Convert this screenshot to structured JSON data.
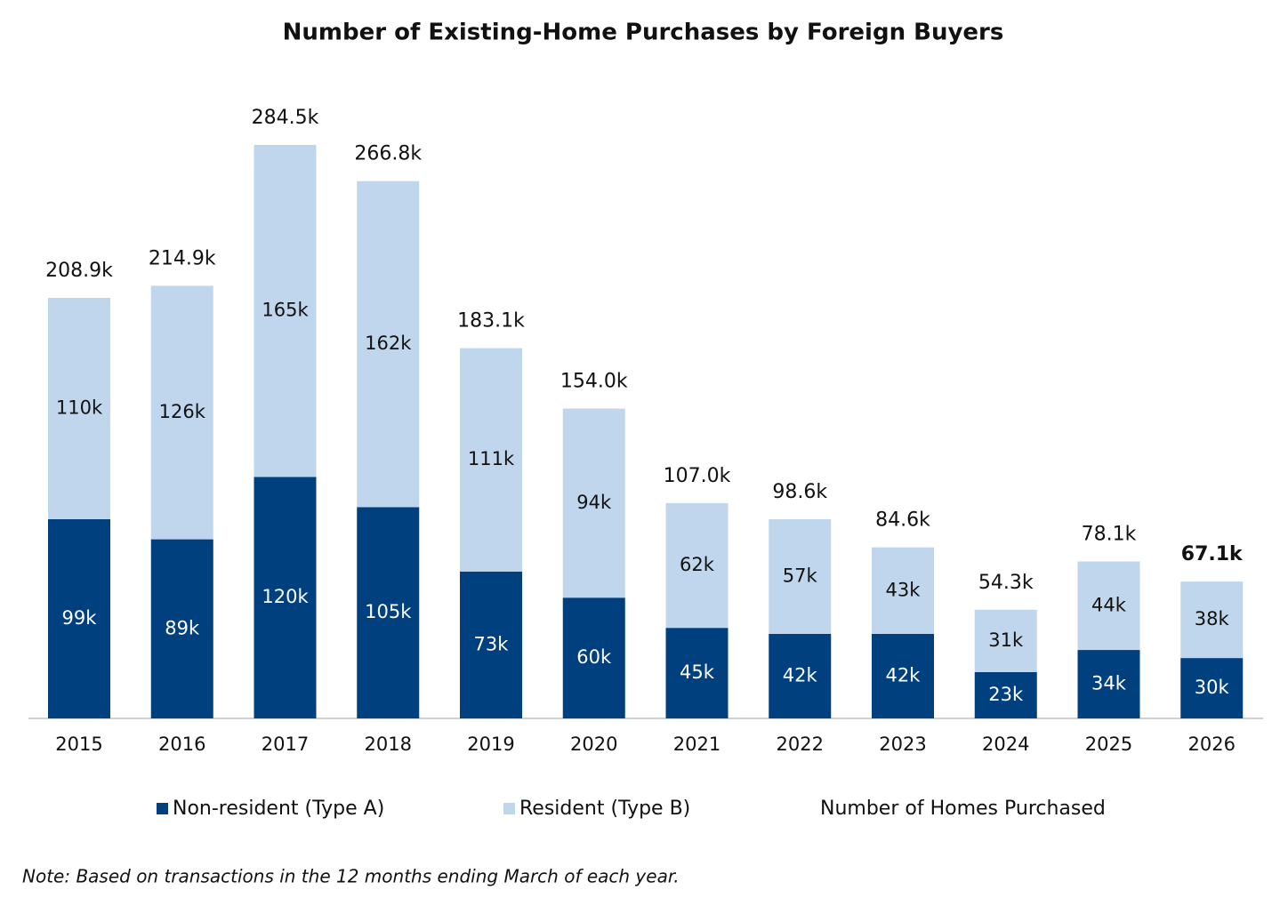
{
  "chart_data": {
    "type": "stacked_bar",
    "title": "Number of Existing-Home Purchases by Foreign Buyers",
    "categories": [
      "2015",
      "2016",
      "2017",
      "2018",
      "2019",
      "2020",
      "2021",
      "2022",
      "2023",
      "2024",
      "2025",
      "2026"
    ],
    "series": [
      {
        "name": "Non-resident (Type A)",
        "color": "#00407f",
        "values": [
          99,
          89,
          120,
          105,
          73,
          60,
          45,
          42,
          42,
          23,
          34,
          30
        ],
        "value_labels": [
          "99k",
          "89k",
          "120k",
          "105k",
          "73k",
          "60k",
          "45k",
          "42k",
          "42k",
          "23k",
          "34k",
          "30k"
        ]
      },
      {
        "name": "Resident (Type B)",
        "color": "#bfd6ec",
        "values": [
          110,
          126,
          165,
          162,
          111,
          94,
          62,
          57,
          43,
          31,
          44,
          38
        ],
        "value_labels": [
          "110k",
          "126k",
          "165k",
          "162k",
          "111k",
          "94k",
          "62k",
          "57k",
          "43k",
          "31k",
          "44k",
          "38k"
        ]
      },
      {
        "name": "Number of Homes Purchased",
        "values": [
          208.9,
          214.9,
          284.5,
          266.8,
          183.1,
          154.0,
          107.0,
          98.6,
          84.6,
          54.3,
          78.1,
          67.1
        ],
        "value_labels": [
          "208.9k",
          "214.9k",
          "284.5k",
          "266.8k",
          "183.1k",
          "154.0k",
          "107.0k",
          "98.6k",
          "84.6k",
          "54.3k",
          "78.1k",
          "67.1k"
        ]
      }
    ],
    "note": "Note: Based on transactions in the 12 months ending March of each year."
  }
}
